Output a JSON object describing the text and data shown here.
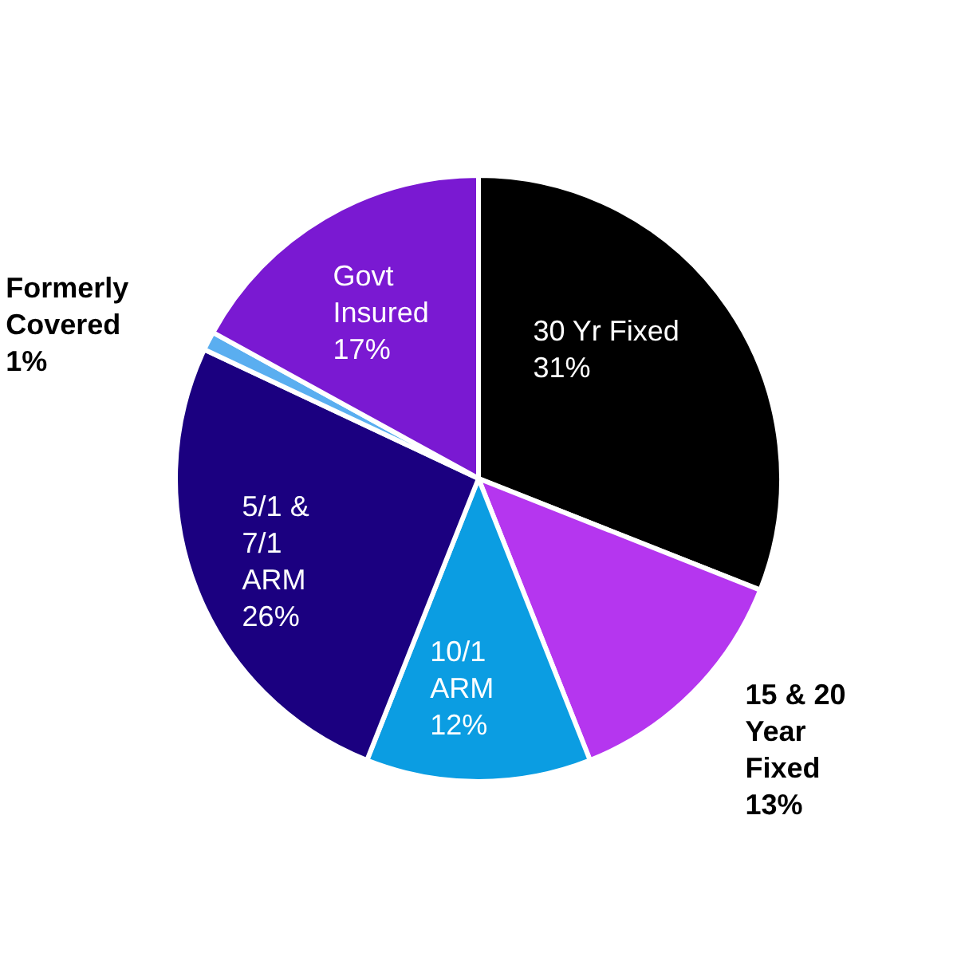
{
  "chart_data": {
    "type": "pie",
    "categories": [
      "30 Yr Fixed",
      "15 & 20 Year Fixed",
      "10/1 ARM",
      "5/1 & 7/1 ARM",
      "Formerly Covered",
      "Govt Insured"
    ],
    "values": [
      31,
      13,
      12,
      26,
      1,
      17
    ],
    "value_labels": [
      "31%",
      "13%",
      "12%",
      "26%",
      "1%",
      "17%"
    ],
    "colors": [
      "#000000",
      "#b536ef",
      "#0b9de2",
      "#1b0080",
      "#5aaef0",
      "#7a19d2"
    ],
    "legend": false
  }
}
